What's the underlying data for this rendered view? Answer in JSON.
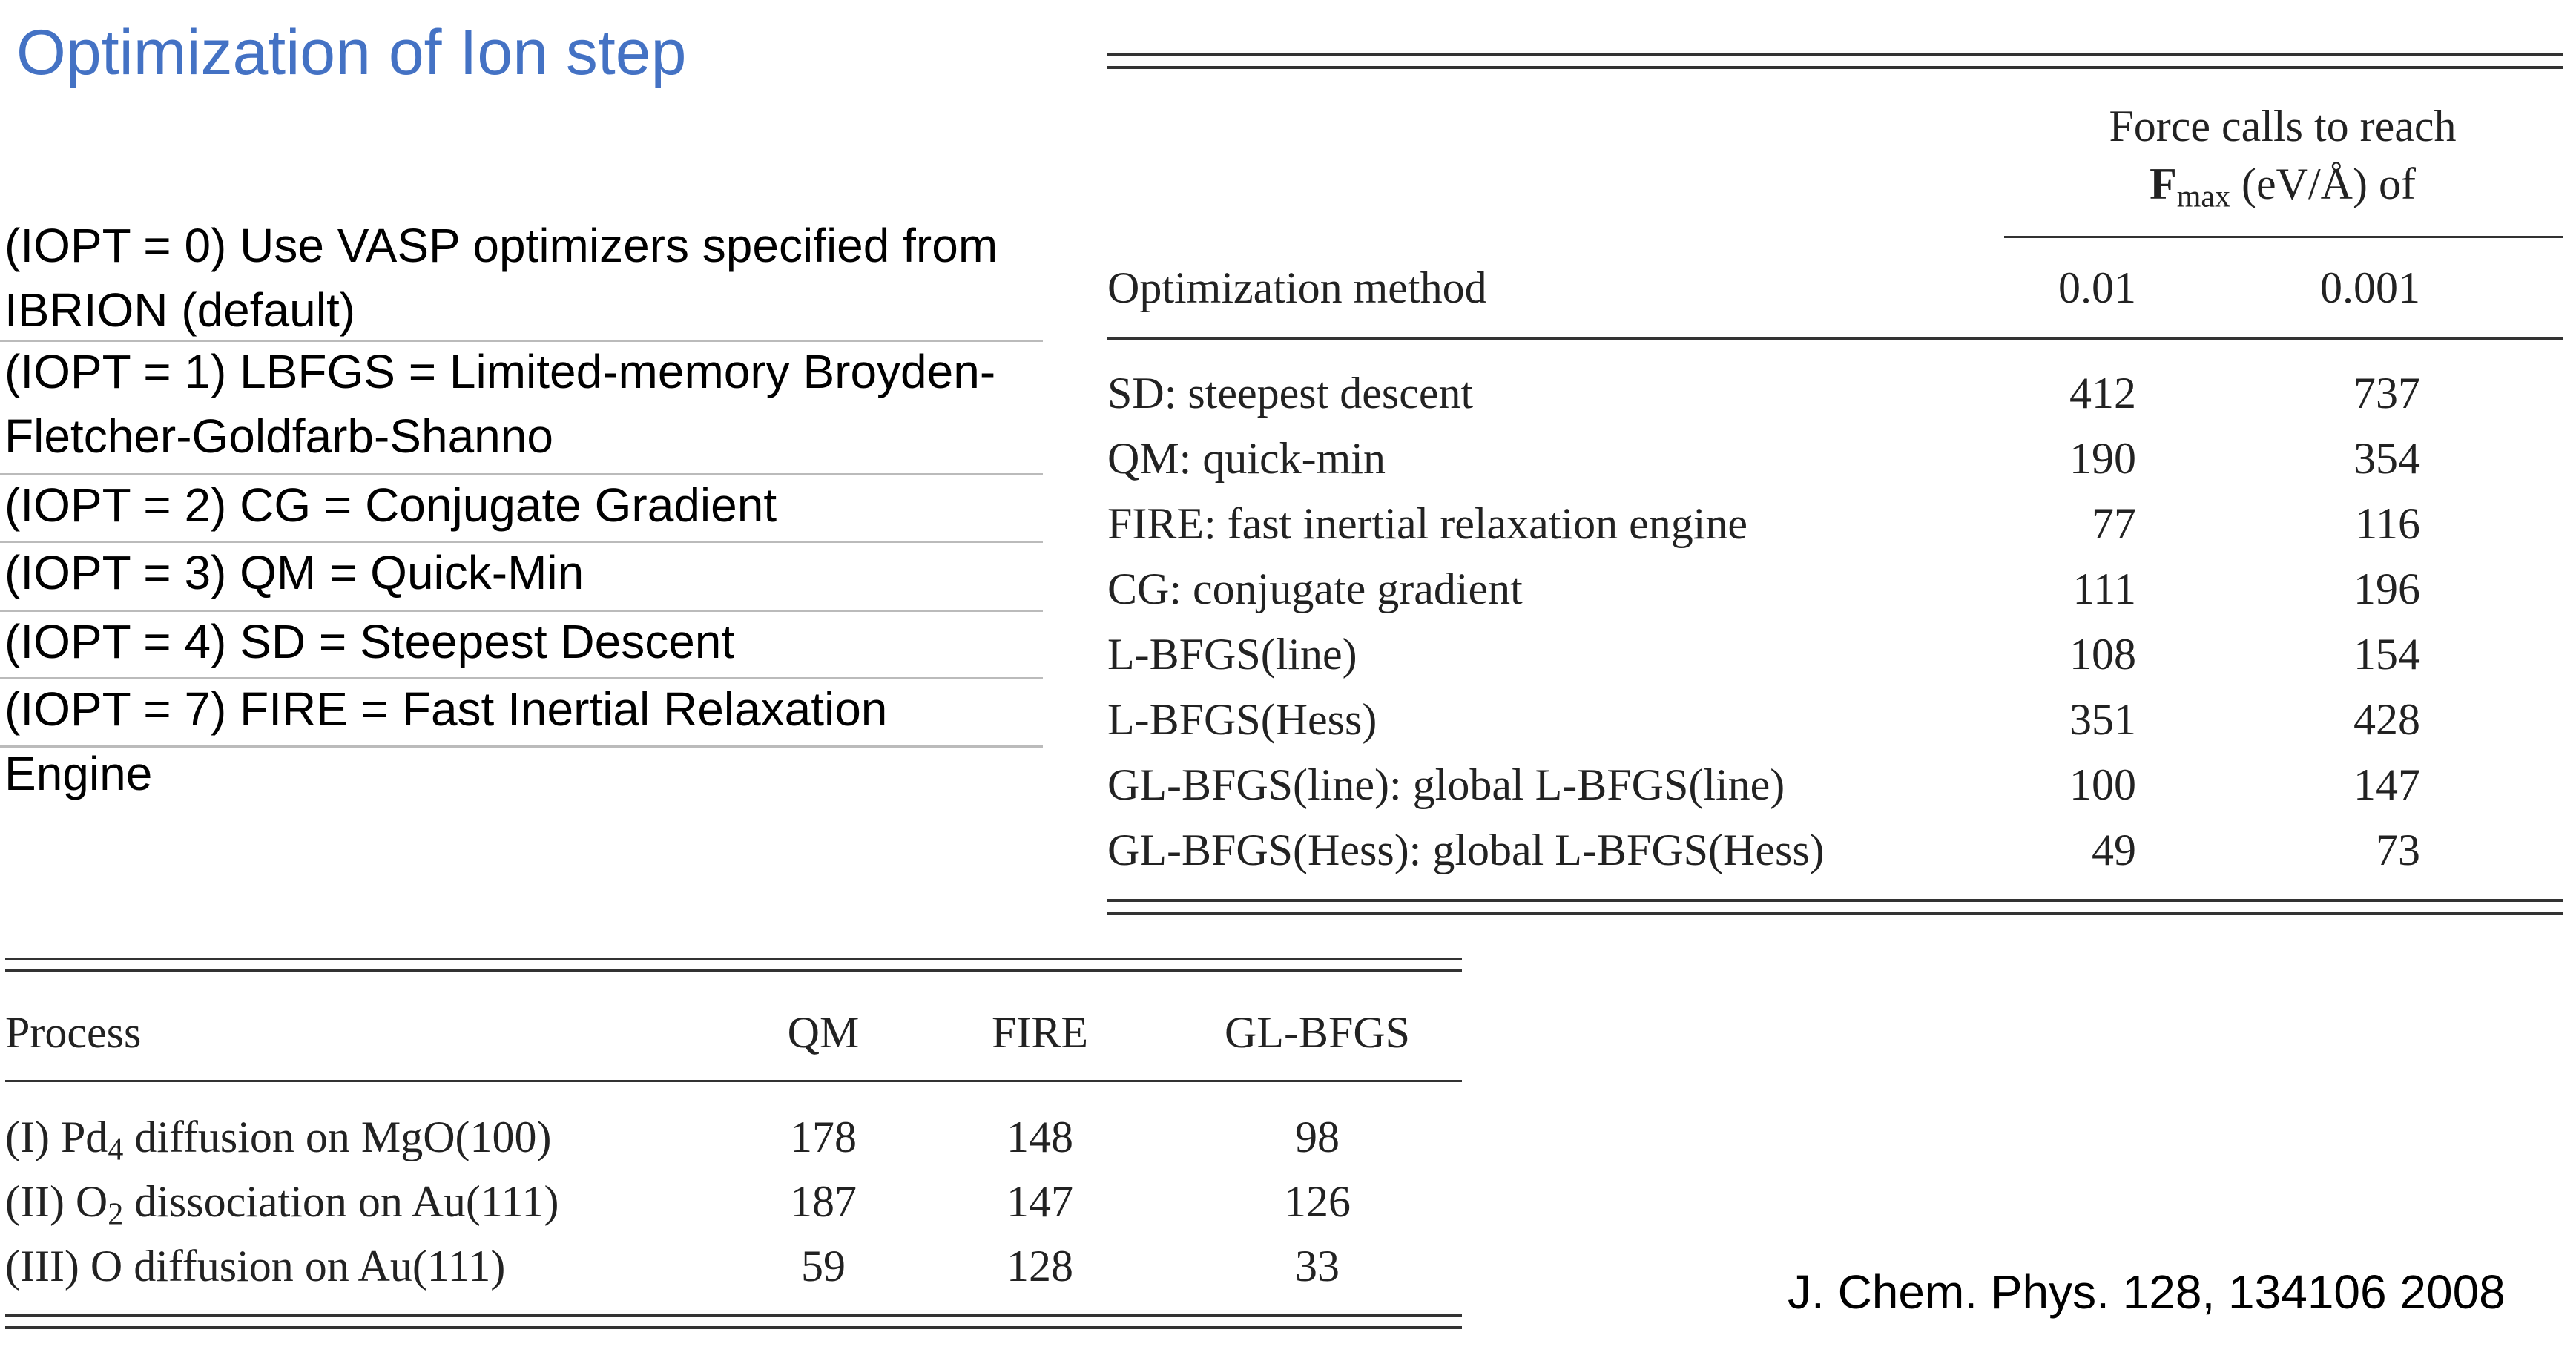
{
  "title": "Optimization of Ion step",
  "options": [
    "(IOPT = 0) Use VASP optimizers specified from IBRION (default)",
    "(IOPT = 1) LBFGS = Limited-memory Broyden-Fletcher-Goldfarb-Shanno",
    "(IOPT = 2) CG = Conjugate Gradient",
    "(IOPT = 3) QM = Quick-Min",
    "(IOPT = 4) SD = Steepest Descent",
    "(IOPT = 7) FIRE = Fast Inertial Relaxation Engine"
  ],
  "table1": {
    "group_header": {
      "line1": "Force calls to reach",
      "symbol": "F",
      "subscript": "max",
      "rest": "(eV/Å) of"
    },
    "columns": [
      "Optimization method",
      "0.01",
      "0.001"
    ],
    "rows": [
      [
        "SD: steepest descent",
        "412",
        "737"
      ],
      [
        "QM: quick-min",
        "190",
        "354"
      ],
      [
        "FIRE: fast inertial relaxation engine",
        "77",
        "116"
      ],
      [
        "CG: conjugate gradient",
        "111",
        "196"
      ],
      [
        "L-BFGS(line)",
        "108",
        "154"
      ],
      [
        "L-BFGS(Hess)",
        "351",
        "428"
      ],
      [
        "GL-BFGS(line): global L-BFGS(line)",
        "100",
        "147"
      ],
      [
        "GL-BFGS(Hess): global L-BFGS(Hess)",
        "49",
        "73"
      ]
    ]
  },
  "table2": {
    "columns": [
      "Process",
      "QM",
      "FIRE",
      "GL-BFGS"
    ],
    "rows": [
      [
        [
          "(I) Pd",
          "4",
          " diffusion on MgO(100)"
        ],
        "178",
        "148",
        "98"
      ],
      [
        [
          "(II) O",
          "2",
          " dissociation on Au(111)"
        ],
        "187",
        "147",
        "126"
      ],
      [
        [
          "(III) O diffusion on Au(111)"
        ],
        "59",
        "128",
        "33"
      ]
    ]
  },
  "citation": "J. Chem. Phys. 128, 134106 2008"
}
